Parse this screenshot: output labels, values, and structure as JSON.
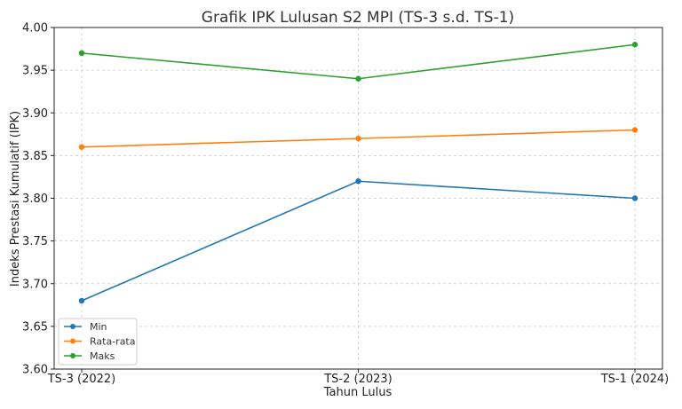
{
  "chart_data": {
    "type": "line",
    "title": "Grafik IPK Lulusan S2 MPI (TS-3 s.d. TS-1)",
    "xlabel": "Tahun Lulus",
    "ylabel": "Indeks Prestasi Kumulatif (IPK)",
    "categories": [
      "TS-3 (2022)",
      "TS-2 (2023)",
      "TS-1 (2024)"
    ],
    "ylim": [
      3.6,
      4.0
    ],
    "yticks": [
      "3.60",
      "3.65",
      "3.70",
      "3.75",
      "3.80",
      "3.85",
      "3.90",
      "3.95",
      "4.00"
    ],
    "grid": true,
    "legend_position": "lower-left",
    "series": [
      {
        "name": "Min",
        "color": "#1f77b4",
        "values": [
          3.68,
          3.82,
          3.8
        ]
      },
      {
        "name": "Rata-rata",
        "color": "#ff7f0e",
        "values": [
          3.86,
          3.87,
          3.88
        ]
      },
      {
        "name": "Maks",
        "color": "#2ca02c",
        "values": [
          3.97,
          3.94,
          3.98
        ]
      }
    ]
  }
}
